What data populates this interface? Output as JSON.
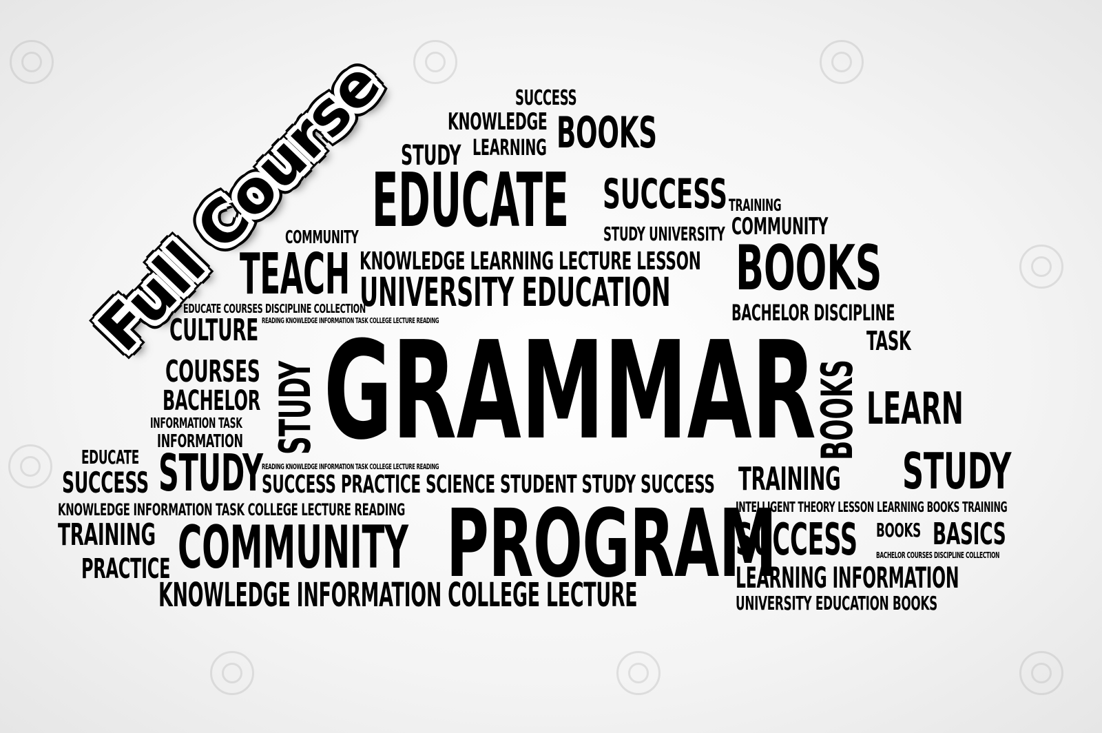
{
  "badge": {
    "text": "Full Course"
  },
  "words": [
    "GRAMMAR",
    "PROGRAM",
    "EDUCATE",
    "COMMUNITY",
    "TEACH",
    "BOOKS",
    "STUDY",
    "SUCCESS",
    "KNOWLEDGE",
    "LEARNING",
    "UNIVERSITY EDUCATION",
    "KNOWLEDGE LEARNING LECTURE LESSON",
    "CULTURE",
    "COURSES",
    "BACHELOR",
    "TRAINING",
    "PRACTICE",
    "LEARN",
    "TASK",
    "BASICS",
    "INFORMATION",
    "BACHELOR DISCIPLINE",
    "STUDY UNIVERSITY",
    "SUCCESS PRACTICE SCIENCE STUDENT STUDY SUCCESS",
    "KNOWLEDGE INFORMATION COLLEGE LECTURE",
    "LEARNING INFORMATION",
    "UNIVERSITY EDUCATION BOOKS",
    "KNOWLEDGE INFORMATION TASK COLLEGE LECTURE READING",
    "INTELLIGENT THEORY LESSON LEARNING BOOKS TRAINING",
    "EDUCATE COURSES DISCIPLINE COLLECTION",
    "INFORMATION TASK",
    "BACHELOR COURSES DISCIPLINE COLLECTION",
    "READING KNOWLEDGE INFORMATION TASK COLLEGE LECTURE READING"
  ]
}
